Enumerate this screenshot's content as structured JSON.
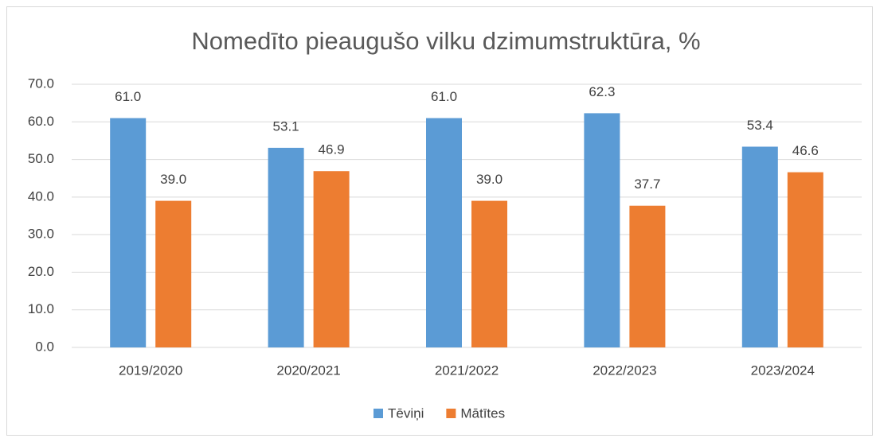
{
  "chart_data": {
    "type": "bar",
    "title": "Nomedīto pieaugušo vilku dzimumstruktūra, %",
    "categories": [
      "2019/2020",
      "2020/2021",
      "2021/2022",
      "2022/2023",
      "2023/2024"
    ],
    "series": [
      {
        "name": "Tēviņi",
        "color": "#5b9bd5",
        "values": [
          61.0,
          53.1,
          61.0,
          62.3,
          53.4
        ],
        "value_labels": [
          "61.0",
          "53.1",
          "61.0",
          "62.3",
          "53.4"
        ]
      },
      {
        "name": "Mātītes",
        "color": "#ed7d31",
        "values": [
          39.0,
          46.9,
          39.0,
          37.7,
          46.6
        ],
        "value_labels": [
          "39.0",
          "46.9",
          "39.0",
          "37.7",
          "46.6"
        ]
      }
    ],
    "ylim": [
      0,
      70
    ],
    "yticks": [
      {
        "value": 0,
        "label": "0.0"
      },
      {
        "value": 10,
        "label": "10.0"
      },
      {
        "value": 20,
        "label": "20.0"
      },
      {
        "value": 30,
        "label": "30.0"
      },
      {
        "value": 40,
        "label": "40.0"
      },
      {
        "value": 50,
        "label": "50.0"
      },
      {
        "value": 60,
        "label": "60.0"
      },
      {
        "value": 70,
        "label": "70.0"
      }
    ],
    "grid": true,
    "legend": "bottom"
  }
}
